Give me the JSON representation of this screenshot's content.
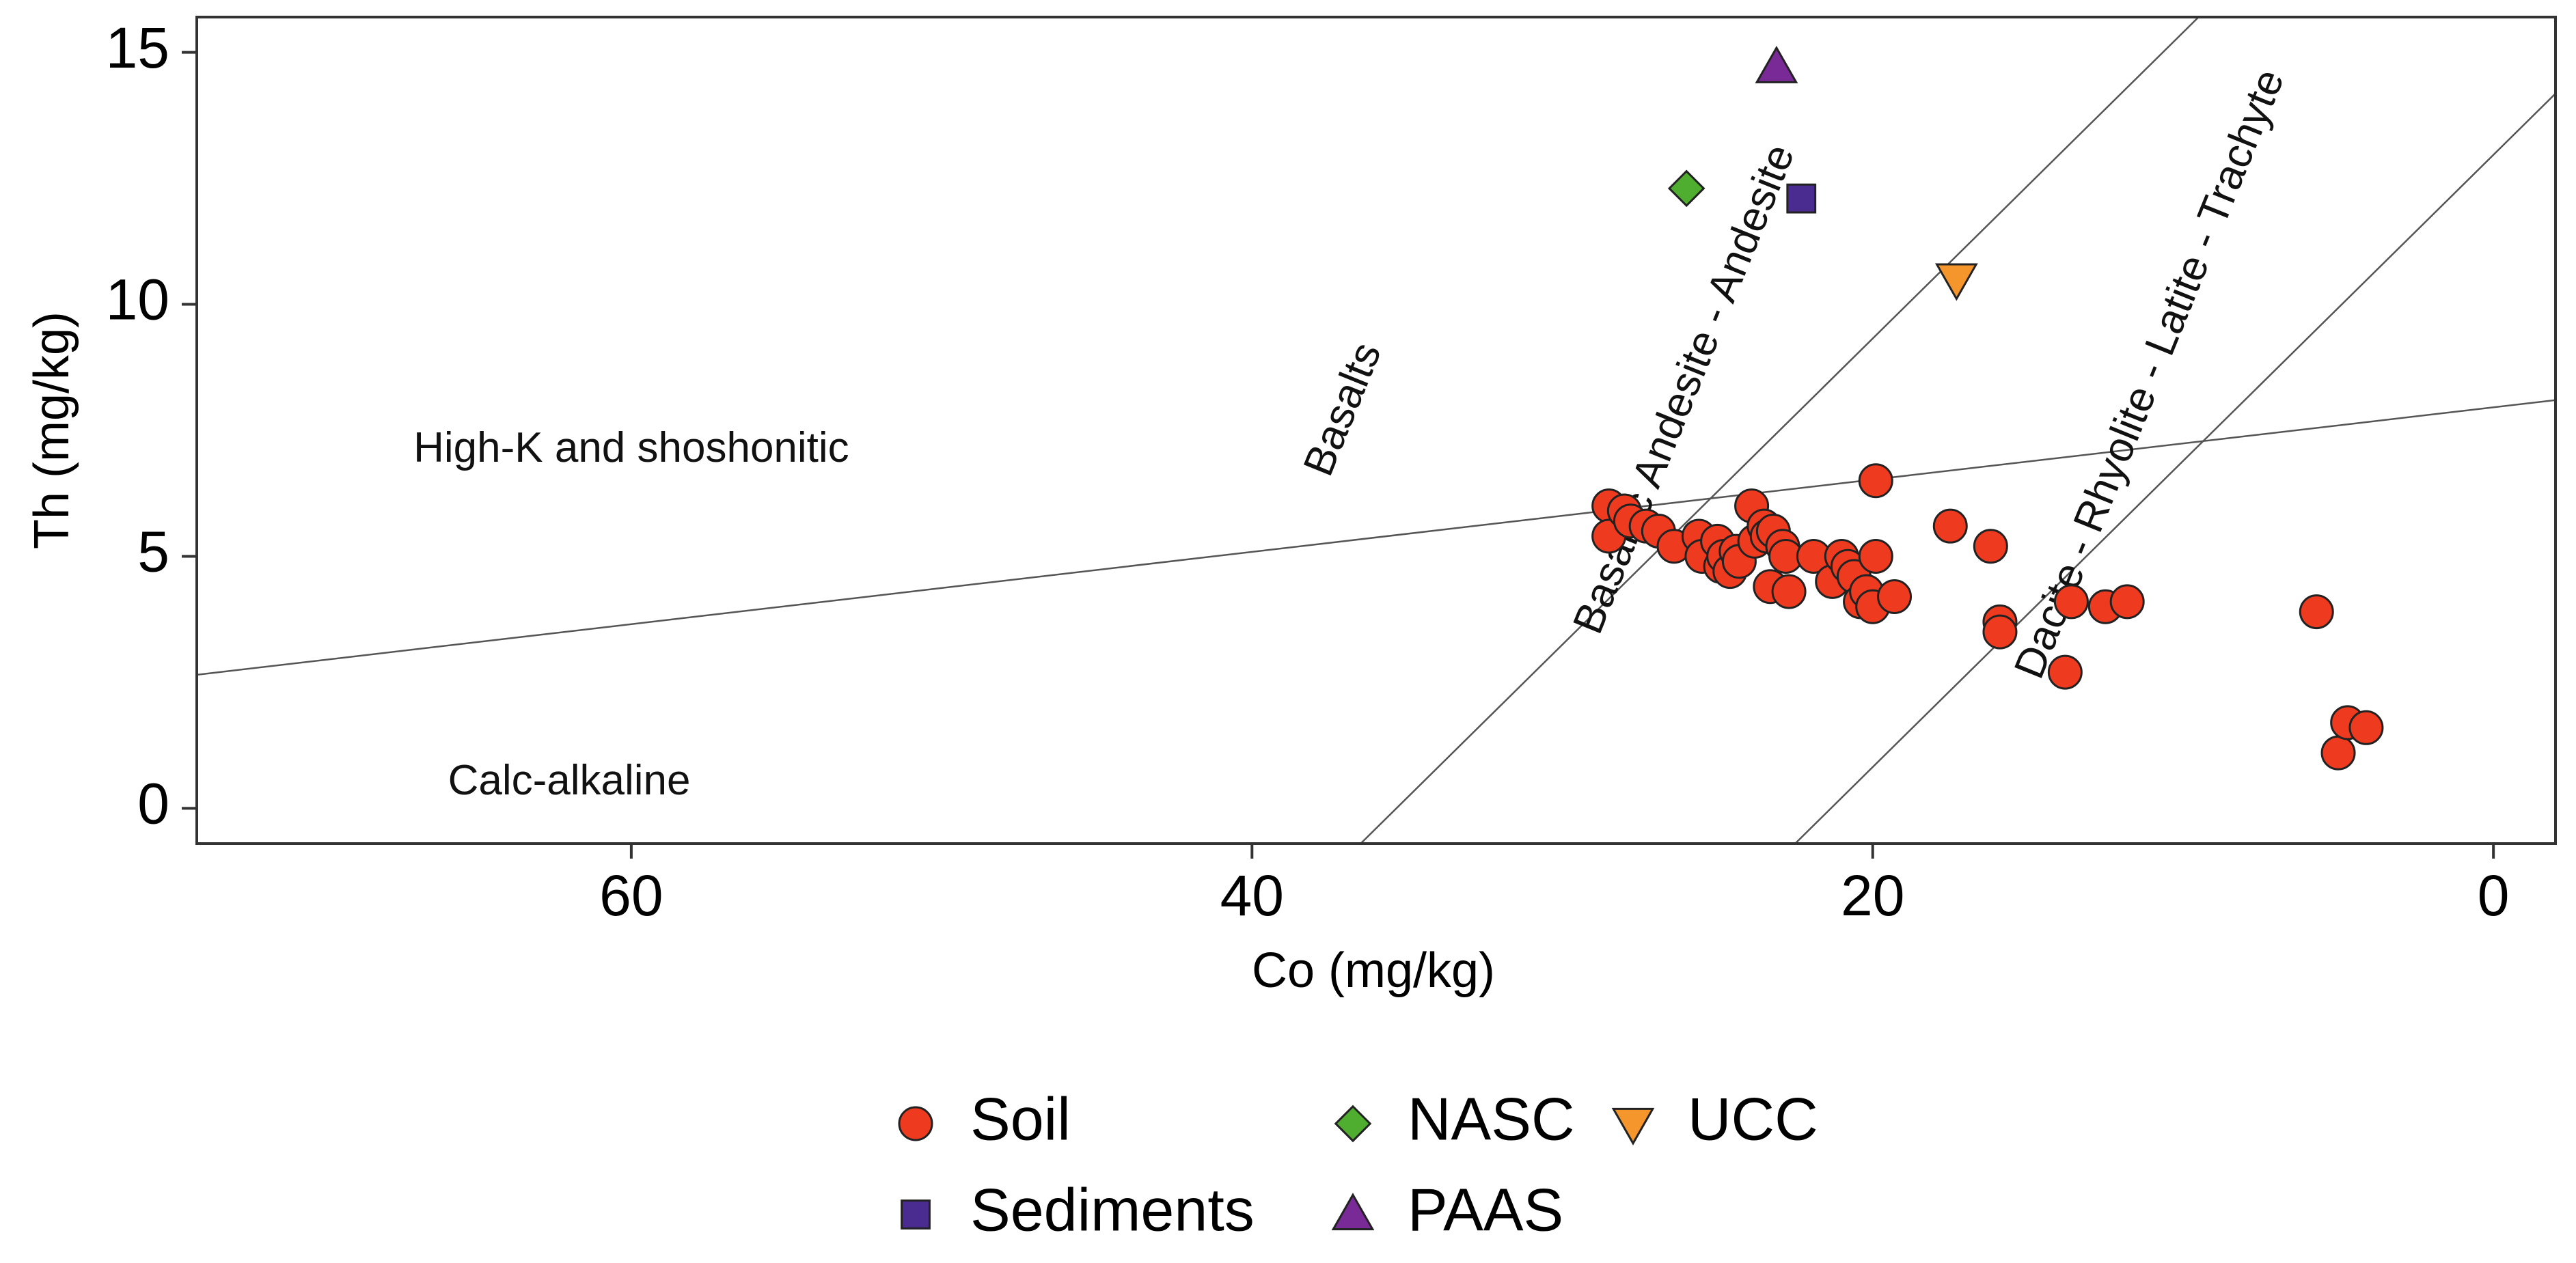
{
  "chart_data": {
    "type": "scatter",
    "xlabel": "Co (mg/kg)",
    "ylabel": "Th (mg/kg)",
    "xlim": [
      -2,
      74
    ],
    "x_reversed": true,
    "ylim": [
      -0.7,
      15.7
    ],
    "x_ticks": [
      60,
      40,
      20,
      0
    ],
    "y_ticks": [
      0,
      5,
      10,
      15
    ],
    "grid": false,
    "boundaries": [
      {
        "name": "calc-alkaline-divider",
        "points": [
          [
            74,
            2.65
          ],
          [
            -2,
            8.1
          ]
        ]
      },
      {
        "name": "basalt-divider",
        "points": [
          [
            36.5,
            -0.7
          ],
          [
            9.5,
            15.7
          ]
        ]
      },
      {
        "name": "andesite-divider",
        "points": [
          [
            22.5,
            -0.7
          ],
          [
            -4.5,
            15.7
          ]
        ]
      }
    ],
    "region_labels": [
      {
        "name": "high-k-label",
        "text": "High-K and shoshonitic",
        "x": 60,
        "y": 7.1,
        "rotate": 0
      },
      {
        "name": "calc-alkaline-label",
        "text": "Calc-alkaline",
        "x": 62,
        "y": 0.5,
        "rotate": 0
      },
      {
        "name": "basalts-label",
        "text": "Basalts",
        "x": 37,
        "y": 7.9,
        "rotate": -68
      },
      {
        "name": "basaltic-andesite-label",
        "text": "Basaltic Andesite - Andesite",
        "x": 26,
        "y": 8.3,
        "rotate": -68
      },
      {
        "name": "dacite-label",
        "text": "Dacite - Rhyolite - Latite - Trachyte",
        "x": 11,
        "y": 8.6,
        "rotate": -68
      }
    ],
    "series": [
      {
        "name": "Soil",
        "marker": "circle",
        "color": "#ee3a1f",
        "points": [
          [
            28.5,
            6.0
          ],
          [
            28.5,
            5.4
          ],
          [
            28.0,
            5.9
          ],
          [
            27.8,
            5.7
          ],
          [
            27.3,
            5.6
          ],
          [
            26.9,
            5.5
          ],
          [
            26.4,
            5.2
          ],
          [
            25.6,
            5.4
          ],
          [
            25.5,
            5.0
          ],
          [
            25.0,
            5.3
          ],
          [
            24.9,
            4.8
          ],
          [
            24.8,
            5.0
          ],
          [
            24.6,
            4.7
          ],
          [
            24.4,
            5.1
          ],
          [
            24.3,
            4.9
          ],
          [
            23.9,
            6.0
          ],
          [
            23.8,
            5.3
          ],
          [
            23.5,
            5.6
          ],
          [
            23.4,
            5.4
          ],
          [
            23.3,
            4.4
          ],
          [
            23.2,
            5.5
          ],
          [
            22.9,
            5.2
          ],
          [
            22.8,
            5.0
          ],
          [
            22.7,
            4.3
          ],
          [
            21.9,
            5.0
          ],
          [
            21.3,
            4.5
          ],
          [
            21.0,
            5.0
          ],
          [
            20.8,
            4.8
          ],
          [
            20.6,
            4.6
          ],
          [
            20.4,
            4.1
          ],
          [
            20.2,
            4.3
          ],
          [
            20.0,
            4.0
          ],
          [
            19.9,
            5.0
          ],
          [
            19.9,
            6.5
          ],
          [
            19.3,
            4.2
          ],
          [
            17.5,
            5.6
          ],
          [
            16.2,
            5.2
          ],
          [
            15.9,
            3.7
          ],
          [
            15.9,
            3.5
          ],
          [
            13.6,
            4.1
          ],
          [
            13.8,
            2.7
          ],
          [
            12.5,
            4.0
          ],
          [
            11.8,
            4.1
          ],
          [
            5.7,
            3.9
          ],
          [
            5.0,
            1.1
          ],
          [
            4.7,
            1.7
          ],
          [
            4.1,
            1.6
          ]
        ]
      },
      {
        "name": "Sediments",
        "marker": "square",
        "color": "#4a2b8f",
        "points": [
          [
            22.3,
            12.1
          ]
        ]
      },
      {
        "name": "NASC",
        "marker": "diamond",
        "color": "#4fae2f",
        "points": [
          [
            26.0,
            12.3
          ]
        ]
      },
      {
        "name": "PAAS",
        "marker": "triangle-up",
        "color": "#7a2a97",
        "points": [
          [
            23.1,
            14.7
          ]
        ]
      },
      {
        "name": "UCC",
        "marker": "triangle-down",
        "color": "#f4962c",
        "points": [
          [
            17.3,
            10.5
          ]
        ]
      }
    ],
    "legend": {
      "position": "bottom",
      "columns": [
        [
          "Soil",
          "Sediments"
        ],
        [
          "NASC",
          "PAAS"
        ],
        [
          "UCC"
        ]
      ]
    }
  }
}
